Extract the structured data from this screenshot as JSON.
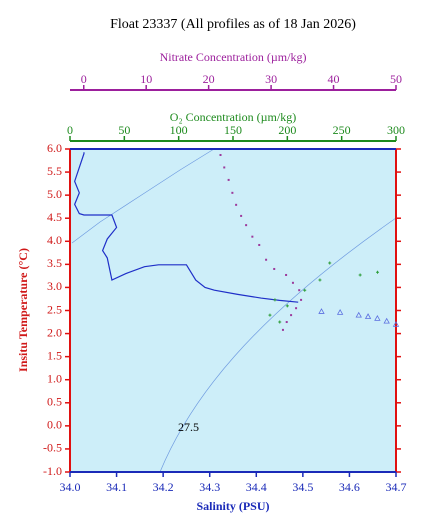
{
  "chart_data": {
    "type": "line",
    "title": "Float 23337  (All profiles as of 18 Jan 2026)",
    "xlabel": "Salinity (PSU)",
    "ylabel": "Insitu Temperature (°C)",
    "x2label": "O₂ Concentration (µm/kg)",
    "x3label": "Nitrate Concentration (µm/kg)",
    "xlim": [
      34.0,
      34.7
    ],
    "xticks": [
      {
        "value": 34.0,
        "label": "34.0"
      },
      34.1,
      34.2,
      34.3,
      34.4,
      34.5,
      34.6,
      34.7
    ],
    "x2lim": [
      0,
      300
    ],
    "x2ticks": [
      0,
      50,
      100,
      150,
      200,
      250,
      300
    ],
    "x3lim": [
      -2.2,
      50
    ],
    "x3ticks": [
      0,
      10,
      20,
      30,
      40,
      50
    ],
    "ylim": [
      -1.0,
      6.0
    ],
    "yticks": [
      {
        "value": -1,
        "label": "-1.0"
      },
      {
        "value": -0.5,
        "label": "-0.5"
      },
      {
        "value": 0,
        "label": "0.0"
      },
      0.5,
      {
        "value": 1,
        "label": "1.0"
      },
      1.5,
      {
        "value": 2,
        "label": "2.0"
      },
      2.5,
      {
        "value": 3,
        "label": "3.0"
      },
      3.5,
      {
        "value": 4,
        "label": "4.0"
      },
      4.5,
      {
        "value": 5,
        "label": "5.0"
      },
      5.5,
      {
        "value": 6,
        "label": "6.0"
      }
    ],
    "background": "#cdeef9",
    "annotation": "27.5",
    "series": [
      {
        "axis": "x",
        "marker": "line",
        "color": "#1f2fc8",
        "x": [
          34.03,
          34.03,
          34.02,
          34.01,
          34.02,
          34.01,
          34.02,
          34.03,
          34.09,
          34.1,
          34.08,
          34.07,
          34.08,
          34.09,
          34.12,
          34.16,
          34.19,
          34.25,
          34.27,
          34.29,
          34.31,
          34.36,
          34.41,
          34.45,
          34.49
        ],
        "values": [
          5.93,
          5.9,
          5.6,
          5.3,
          5.05,
          4.8,
          4.6,
          4.57,
          4.57,
          4.3,
          4.05,
          3.8,
          3.64,
          3.16,
          3.3,
          3.45,
          3.49,
          3.49,
          3.16,
          3.0,
          2.94,
          2.85,
          2.77,
          2.72,
          2.68
        ]
      },
      {
        "axis": "x3",
        "marker": "square",
        "color": "#9c3a9c",
        "x": [
          21.9,
          22.5,
          23.2,
          23.8,
          24.4,
          25.2,
          26,
          27,
          28.1,
          29.2,
          30.5,
          32.4,
          33.5,
          34.5,
          34.8,
          34,
          33.2,
          32.5,
          31.9
        ],
        "values": [
          5.87,
          5.6,
          5.33,
          5.05,
          4.79,
          4.55,
          4.35,
          4.1,
          3.92,
          3.6,
          3.4,
          3.27,
          3.1,
          2.94,
          2.73,
          2.55,
          2.4,
          2.25,
          2.08
        ]
      },
      {
        "axis": "x2",
        "marker": "plus",
        "color": "#2e9e3a",
        "x": [
          188.6,
          184,
          193,
          200,
          216,
          230,
          239,
          267,
          283
        ],
        "values": [
          2.73,
          2.4,
          2.25,
          2.6,
          2.94,
          3.16,
          3.53,
          3.27,
          3.33
        ]
      },
      {
        "axis": "x",
        "marker": "triangle",
        "color": "#5b6fe0",
        "x": [
          34.54,
          34.58,
          34.62,
          34.64,
          34.66,
          34.68,
          34.7
        ],
        "values": [
          2.48,
          2.46,
          2.4,
          2.37,
          2.33,
          2.27,
          2.2
        ]
      }
    ]
  }
}
